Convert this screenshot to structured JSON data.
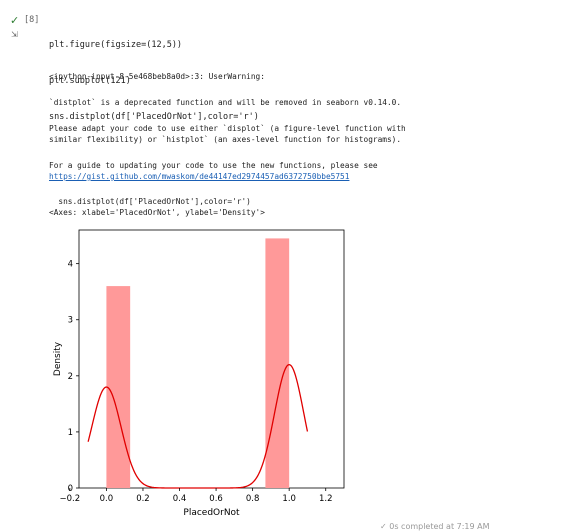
{
  "cell": {
    "status_icon": "✓",
    "prompt": "[8]",
    "code_lines": [
      "plt.figure(figsize=(12,5))",
      "plt.subplot(121)",
      "sns.distplot(df['PlacedOrNot'],color='r')"
    ]
  },
  "output": {
    "warning_header": "<ipython-input-8-5e468beb8a0d>:3: UserWarning:",
    "warning_line1": "`distplot` is a deprecated function and will be removed in seaborn v0.14.0.",
    "warning_line2a": "Please adapt your code to use either `displot` (a figure-level function with",
    "warning_line2b": "similar flexibility) or `histplot` (an axes-level function for histograms).",
    "warning_line3": "For a guide to updating your code to use the new functions, please see",
    "warning_link": "https://gist.github.com/mwaskom/de44147ed2974457ad6372750bbe5751",
    "echo_line": "  sns.distplot(df['PlacedOrNot'],color='r')",
    "repr_line": "<Axes: xlabel='PlacedOrNot', ylabel='Density'>"
  },
  "chart_data": {
    "type": "bar",
    "xlabel": "PlacedOrNot",
    "ylabel": "Density",
    "xlim": [
      -0.15,
      1.3
    ],
    "ylim": [
      0,
      4.6
    ],
    "xticks": [
      "−0.2",
      "0.0",
      "0.2",
      "0.4",
      "0.6",
      "0.8",
      "1.0",
      "1.2"
    ],
    "xtick_values": [
      -0.2,
      0.0,
      0.2,
      0.4,
      0.6,
      0.8,
      1.0,
      1.2
    ],
    "yticks": [
      "0",
      "1",
      "2",
      "3",
      "4"
    ],
    "ytick_values": [
      0,
      1,
      2,
      3,
      4
    ],
    "bars": [
      {
        "x0": 0.0,
        "x1": 0.13,
        "value": 3.6
      },
      {
        "x0": 0.87,
        "x1": 1.0,
        "value": 4.45
      }
    ],
    "bar_color": "#ff9999",
    "kde_color": "#e00000",
    "kde": {
      "peaks": [
        {
          "center": 0.0,
          "height": 1.8,
          "sigma": 0.08
        },
        {
          "center": 1.0,
          "height": 2.2,
          "sigma": 0.08
        }
      ]
    }
  },
  "bottom_fragment": "✓ 0s   completed at 7:19 AM"
}
